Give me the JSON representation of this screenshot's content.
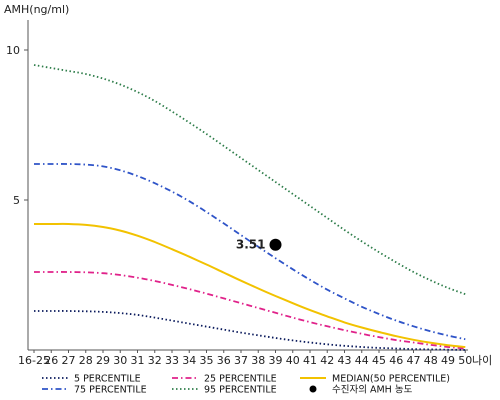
{
  "chart_data": {
    "type": "line",
    "ylabel": "AMH(ng/ml)",
    "xlabel": "나이",
    "ylim": [
      0,
      11
    ],
    "yticks": [
      5,
      10
    ],
    "categories": [
      "16-25",
      "26",
      "27",
      "28",
      "29",
      "30",
      "31",
      "32",
      "33",
      "34",
      "35",
      "36",
      "37",
      "38",
      "39",
      "40",
      "41",
      "42",
      "43",
      "44",
      "45",
      "46",
      "47",
      "48",
      "49",
      "50"
    ],
    "series": [
      {
        "name": "5 PERCENTILE",
        "color": "#0a1a5c",
        "style": "dotted",
        "values": [
          1.3,
          1.3,
          1.3,
          1.29,
          1.27,
          1.23,
          1.17,
          1.08,
          0.98,
          0.88,
          0.78,
          0.68,
          0.58,
          0.49,
          0.4,
          0.32,
          0.25,
          0.19,
          0.14,
          0.1,
          0.07,
          0.05,
          0.03,
          0.02,
          0.01,
          0.0
        ]
      },
      {
        "name": "25 PERCENTILE",
        "color": "#e0228a",
        "style": "dashdot",
        "values": [
          2.6,
          2.6,
          2.6,
          2.59,
          2.56,
          2.5,
          2.41,
          2.3,
          2.17,
          2.03,
          1.88,
          1.72,
          1.56,
          1.4,
          1.24,
          1.08,
          0.93,
          0.79,
          0.66,
          0.54,
          0.43,
          0.33,
          0.25,
          0.17,
          0.1,
          0.05
        ]
      },
      {
        "name": "MEDIAN(50 PERCENTILE)",
        "color": "#f2c200",
        "style": "solid",
        "values": [
          4.2,
          4.2,
          4.2,
          4.17,
          4.1,
          3.98,
          3.81,
          3.6,
          3.36,
          3.11,
          2.85,
          2.58,
          2.31,
          2.05,
          1.8,
          1.56,
          1.33,
          1.12,
          0.92,
          0.75,
          0.6,
          0.46,
          0.34,
          0.24,
          0.16,
          0.1
        ]
      },
      {
        "name": "75 PERCENTILE",
        "color": "#2f54c8",
        "style": "dashdot",
        "values": [
          6.2,
          6.2,
          6.2,
          6.18,
          6.12,
          5.99,
          5.8,
          5.56,
          5.28,
          4.96,
          4.6,
          4.22,
          3.83,
          3.44,
          3.06,
          2.69,
          2.34,
          2.01,
          1.72,
          1.44,
          1.2,
          0.98,
          0.79,
          0.62,
          0.48,
          0.36
        ]
      },
      {
        "name": "95 PERCENTILE",
        "color": "#2e7d4a",
        "style": "dotted",
        "values": [
          9.5,
          9.4,
          9.3,
          9.2,
          9.05,
          8.85,
          8.6,
          8.3,
          7.95,
          7.58,
          7.2,
          6.8,
          6.4,
          6.0,
          5.6,
          5.2,
          4.8,
          4.4,
          4.0,
          3.62,
          3.26,
          2.92,
          2.6,
          2.32,
          2.07,
          1.86
        ]
      }
    ],
    "marker": {
      "name": "수진자의 AMH 농도",
      "x": "39",
      "y": 3.51,
      "label": "3.51",
      "color": "#000000"
    },
    "legend_position": "bottom",
    "grid": false
  }
}
